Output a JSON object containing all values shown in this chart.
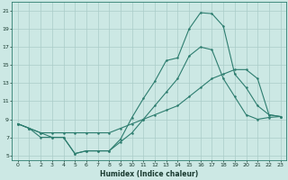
{
  "title": "",
  "xlabel": "Humidex (Indice chaleur)",
  "bg_color": "#cce8e4",
  "line_color": "#2d7d6f",
  "grid_color": "#aaccc8",
  "xlim": [
    -0.5,
    23.5
  ],
  "ylim": [
    4.5,
    22.0
  ],
  "yticks": [
    5,
    7,
    9,
    11,
    13,
    15,
    17,
    19,
    21
  ],
  "xticks": [
    0,
    1,
    2,
    3,
    4,
    5,
    6,
    7,
    8,
    9,
    10,
    11,
    12,
    13,
    14,
    15,
    16,
    17,
    18,
    19,
    20,
    21,
    22,
    23
  ],
  "line1_x": [
    0,
    1,
    2,
    3,
    4,
    5,
    6,
    7,
    8,
    9,
    10,
    11,
    12,
    13,
    14,
    15,
    16,
    17,
    18,
    19,
    20,
    21,
    22,
    23
  ],
  "line1_y": [
    8.5,
    8.0,
    7.5,
    7.0,
    7.0,
    5.2,
    5.5,
    5.5,
    5.5,
    6.8,
    9.2,
    11.3,
    13.2,
    15.5,
    15.8,
    19.0,
    20.8,
    20.7,
    19.3,
    14.0,
    12.5,
    10.5,
    9.5,
    9.3
  ],
  "line2_x": [
    0,
    1,
    2,
    3,
    4,
    5,
    6,
    7,
    8,
    9,
    10,
    11,
    12,
    13,
    14,
    15,
    16,
    17,
    18,
    19,
    20,
    21,
    22,
    23
  ],
  "line2_y": [
    8.5,
    8.0,
    7.0,
    7.0,
    7.0,
    5.2,
    5.5,
    5.5,
    5.5,
    6.5,
    7.5,
    9.0,
    10.5,
    12.0,
    13.5,
    16.0,
    17.0,
    16.7,
    13.5,
    11.5,
    9.5,
    9.0,
    9.2,
    9.3
  ],
  "line3_x": [
    0,
    1,
    2,
    3,
    4,
    5,
    6,
    7,
    8,
    9,
    10,
    11,
    12,
    13,
    14,
    15,
    16,
    17,
    18,
    19,
    20,
    21,
    22,
    23
  ],
  "line3_y": [
    8.5,
    8.0,
    7.5,
    7.5,
    7.5,
    7.5,
    7.5,
    7.5,
    7.5,
    8.0,
    8.5,
    9.0,
    9.5,
    10.0,
    10.5,
    11.5,
    12.5,
    13.5,
    14.0,
    14.5,
    14.5,
    13.5,
    9.5,
    9.3
  ],
  "xlabel_fontsize": 5.5,
  "tick_fontsize": 4.5,
  "linewidth": 0.8,
  "markersize": 1.8
}
